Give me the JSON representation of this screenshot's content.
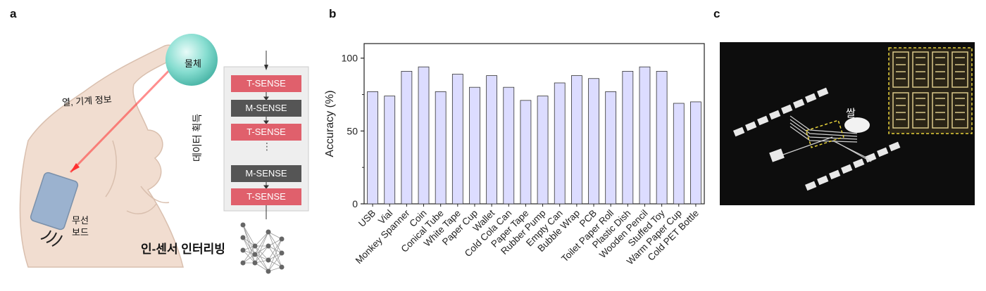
{
  "panel_a": {
    "letter": "a",
    "object_label": "물체",
    "signal_label": "열, 기계 정보",
    "board_label_line1": "무선",
    "board_label_line2": "보드",
    "data_acquisition_label": "데이터 획득",
    "sense_blocks": [
      "T-SENSE",
      "M-SENSE",
      "T-SENSE",
      "M-SENSE",
      "T-SENSE"
    ],
    "ellipsis": "⋮",
    "interleaving_label": "인-센서 인터리빙",
    "colors": {
      "t_sense": "#e0606c",
      "m_sense": "#555555",
      "object": "#7fd9cc"
    }
  },
  "panel_b": {
    "letter": "b"
  },
  "panel_c": {
    "letter": "c",
    "rice_label": "쌀"
  },
  "chart_data": {
    "type": "bar",
    "title": "",
    "xlabel": "",
    "ylabel": "Accuracy (%)",
    "ylim": [
      0,
      110
    ],
    "yticks": [
      "0",
      "50",
      "100"
    ],
    "grid": false,
    "bar_color": "#dcdcff",
    "bar_edge_color": "#333333",
    "categories": [
      "USB",
      "Vial",
      "Monkey Spanner",
      "Coin",
      "Conical Tube",
      "White Tape",
      "Paper Cup",
      "Wallet",
      "Cold Cola Can",
      "Paper Tape",
      "Rubber Pump",
      "Empty Can",
      "Bubble Wrap",
      "PCB",
      "Toilet Paper Roll",
      "Plastic Dish",
      "Wooden Pencil",
      "Stuffed Toy",
      "Warm Paper Cup",
      "Cold PET Bottle"
    ],
    "values": [
      77,
      74,
      91,
      94,
      77,
      89,
      80,
      88,
      80,
      71,
      74,
      83,
      88,
      86,
      77,
      91,
      94,
      91,
      69,
      70
    ]
  }
}
